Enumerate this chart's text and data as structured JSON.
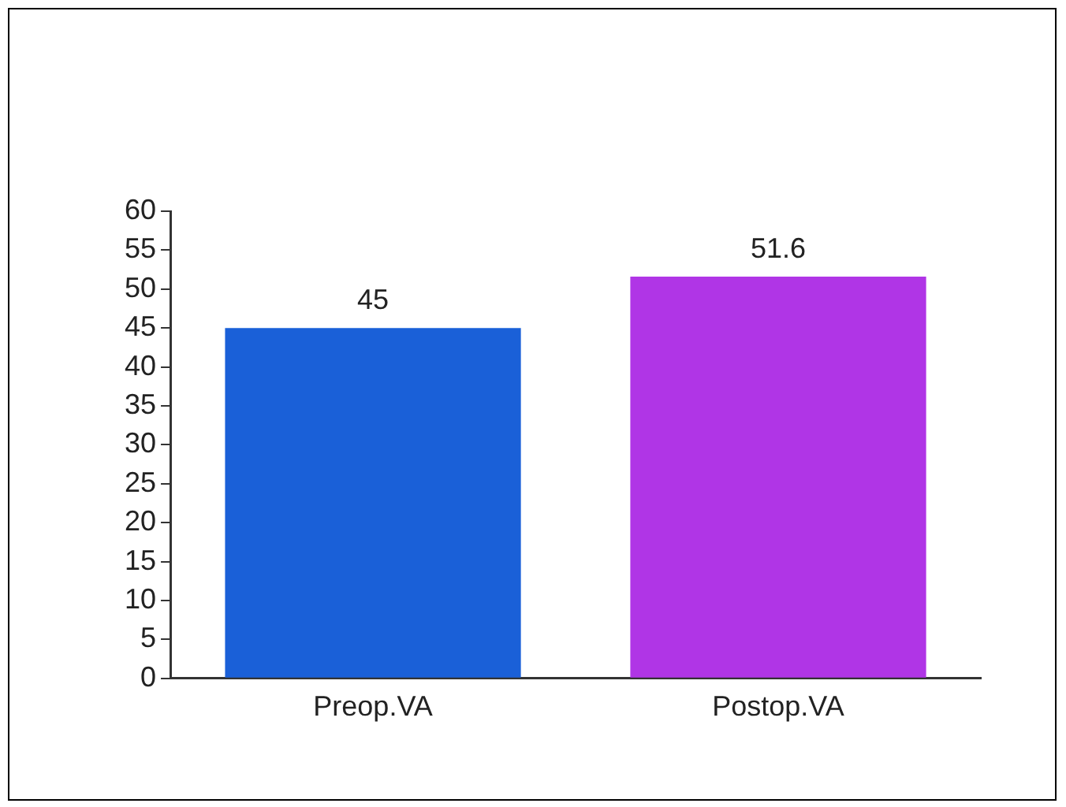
{
  "chart_data": {
    "type": "bar",
    "categories": [
      "Preop.VA",
      "Postop.VA"
    ],
    "values": [
      45,
      51.6
    ],
    "colors": [
      "#1a60d8",
      "#b035e6"
    ],
    "ylim": [
      0,
      60
    ],
    "yticks": [
      0,
      5,
      10,
      15,
      20,
      25,
      30,
      35,
      40,
      45,
      50,
      55,
      60
    ],
    "grid": false,
    "legend": false,
    "data_labels": true
  }
}
